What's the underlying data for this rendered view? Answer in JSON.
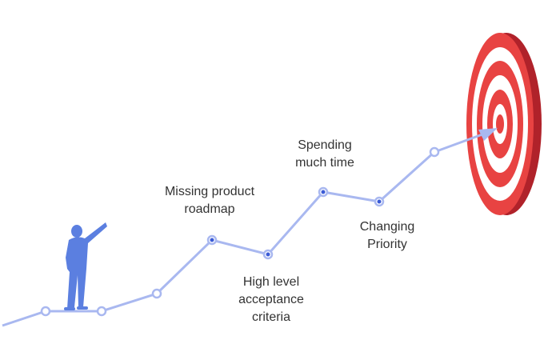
{
  "labels": [
    {
      "lines": [
        "Missing product",
        "roadmap"
      ]
    },
    {
      "lines": [
        "High level",
        "acceptance",
        "criteria"
      ]
    },
    {
      "lines": [
        "Spending",
        "much time"
      ]
    },
    {
      "lines": [
        "Changing",
        "Priority"
      ]
    }
  ]
}
